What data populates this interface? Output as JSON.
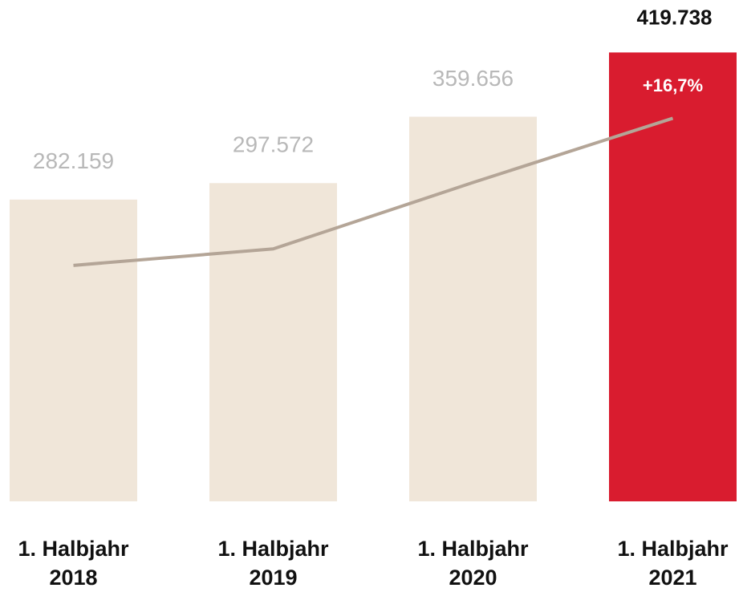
{
  "chart_data": {
    "type": "bar",
    "categories": [
      "1. Halbjahr 2018",
      "1. Halbjahr 2019",
      "1. Halbjahr 2020",
      "1. Halbjahr 2021"
    ],
    "values": [
      282159,
      297572,
      359656,
      419738
    ],
    "value_labels": [
      "282.159",
      "297.572",
      "359.656",
      "419.738"
    ],
    "colors": [
      "#f0e6d9",
      "#f0e6d9",
      "#f0e6d9",
      "#d91c2f"
    ],
    "line_color": "#b4a597",
    "ylim": [
      0,
      468800
    ],
    "annotation": "+16,7%"
  }
}
